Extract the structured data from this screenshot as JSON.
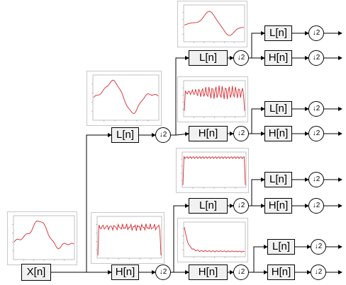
{
  "blocks": {
    "input": "X[n]",
    "low": "L[n]",
    "high": "H[n]",
    "downsample": "↓2"
  },
  "colors": {
    "signal": "#d8282f",
    "line": "#000000",
    "box_fill": "#f1f1f1",
    "plot_border": "#c8c8c8",
    "tick": "#9a9a9a"
  },
  "plots": [
    {
      "id": "input",
      "kind": "smooth"
    },
    {
      "id": "level1-low",
      "kind": "smooth2"
    },
    {
      "id": "level1-high",
      "kind": "flat"
    },
    {
      "id": "level2-low",
      "kind": "hump"
    },
    {
      "id": "level2-high",
      "kind": "flatnoisy"
    },
    {
      "id": "level2b-low",
      "kind": "flat2"
    },
    {
      "id": "level2b-high",
      "kind": "decay"
    }
  ]
}
